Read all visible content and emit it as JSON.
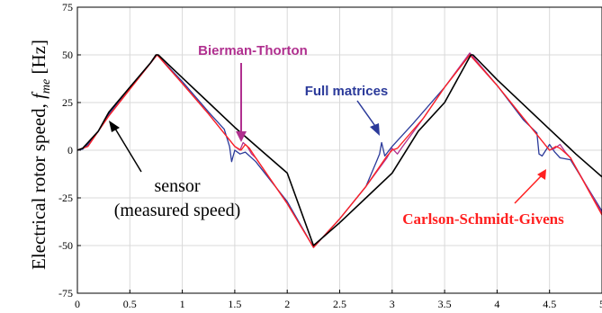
{
  "chart_data": {
    "type": "line",
    "title": "",
    "ylabel_main": "Electrical rotor speed, ",
    "ylabel_symbol": "f",
    "ylabel_subscript": "me",
    "ylabel_unit": " [Hz]",
    "xlabel": "",
    "xlim": [
      0,
      5
    ],
    "ylim": [
      -75,
      75
    ],
    "xticks": [
      0,
      0.5,
      1,
      1.5,
      2,
      2.5,
      3,
      3.5,
      4,
      4.5,
      5
    ],
    "xtick_labels": [
      "0",
      "0.5",
      "1",
      "1.5",
      "2",
      "2.5",
      "3",
      "3.5",
      "4",
      "4.5",
      "5"
    ],
    "yticks": [
      -75,
      -50,
      -25,
      0,
      25,
      50,
      75
    ],
    "ytick_labels": [
      "-75",
      "-50",
      "-25",
      "0",
      "25",
      "50",
      "75"
    ],
    "grid": true,
    "series": [
      {
        "name": "sensor (measured speed)",
        "color": "#000000",
        "x": [
          0,
          0.05,
          0.1,
          0.2,
          0.3,
          0.5,
          0.7,
          0.75,
          0.77,
          1.0,
          1.25,
          1.5,
          1.75,
          2.0,
          2.25,
          2.5,
          2.75,
          3.0,
          3.25,
          3.5,
          3.75,
          3.77,
          4.0,
          4.25,
          4.5,
          4.75,
          5.0
        ],
        "y": [
          0,
          1,
          4,
          10,
          20,
          33,
          46,
          50,
          50,
          38,
          25,
          12,
          0,
          -12,
          -50,
          -38,
          -25,
          -12,
          10,
          25,
          50,
          50,
          37,
          24,
          11,
          -2,
          -14
        ]
      },
      {
        "name": "Full matrices",
        "color": "#2b3a9a",
        "x": [
          0,
          0.05,
          0.1,
          0.2,
          0.3,
          0.5,
          0.7,
          0.76,
          1.0,
          1.25,
          1.4,
          1.45,
          1.47,
          1.5,
          1.55,
          1.6,
          1.7,
          2.0,
          2.25,
          2.5,
          2.75,
          2.85,
          2.88,
          2.9,
          2.93,
          3.0,
          3.05,
          3.2,
          3.5,
          3.74,
          4.0,
          4.25,
          4.38,
          4.4,
          4.43,
          4.5,
          4.55,
          4.6,
          4.7,
          5.0
        ],
        "y": [
          0,
          0.5,
          3,
          10,
          19,
          33,
          46,
          50,
          36,
          20,
          11,
          2,
          -6,
          0,
          -2,
          -1,
          -6,
          -27,
          -51,
          -36,
          -19,
          -6,
          -2,
          4,
          -3,
          2,
          5,
          14,
          33,
          50,
          34,
          16,
          9,
          -2,
          -3,
          3,
          -1,
          -4,
          -5,
          -32
        ]
      },
      {
        "name": "Bierman-Thorton",
        "color": "#b0308f",
        "x": [
          0,
          0.1,
          0.3,
          0.5,
          0.76,
          1.0,
          1.25,
          1.5,
          1.55,
          1.58,
          1.62,
          1.66,
          1.7,
          2.0,
          2.25,
          2.5,
          2.75,
          2.95,
          3.0,
          3.05,
          3.1,
          3.3,
          3.5,
          3.74,
          4.0,
          4.25,
          4.5,
          4.55,
          4.6,
          4.65,
          4.7,
          5.0
        ],
        "y": [
          0,
          2,
          18,
          32,
          50,
          35,
          19,
          2,
          0,
          4,
          2,
          -2,
          -4,
          -28,
          -51,
          -36,
          -19,
          -4,
          1,
          -2,
          2,
          17,
          33,
          51,
          34,
          17,
          0,
          1,
          3,
          -1,
          -4,
          -33
        ]
      },
      {
        "name": "Carlson-Schmidt-Givens",
        "color": "#ff2020",
        "x": [
          0,
          0.1,
          0.3,
          0.5,
          0.76,
          1.0,
          1.25,
          1.5,
          1.56,
          1.6,
          1.64,
          1.7,
          2.0,
          2.25,
          2.5,
          2.75,
          2.95,
          3.0,
          3.05,
          3.3,
          3.5,
          3.74,
          4.0,
          4.25,
          4.5,
          4.56,
          4.6,
          4.66,
          4.7,
          5.0
        ],
        "y": [
          0,
          2,
          18,
          32,
          50,
          35,
          19,
          2,
          0,
          3,
          1,
          -4,
          -28,
          -51,
          -36,
          -19,
          -3,
          0,
          1,
          17,
          33,
          50,
          34,
          17,
          0,
          2,
          1,
          -2,
          -4,
          -34
        ]
      }
    ],
    "annotations": [
      {
        "text": "Bierman-Thorton",
        "color": "#b0308f"
      },
      {
        "text": "Full matrices",
        "color": "#2b3a9a"
      },
      {
        "text": "sensor",
        "color": "#000000"
      },
      {
        "text": "(measured speed)",
        "color": "#000000"
      },
      {
        "text": "Carlson-Schmidt-Givens",
        "color": "#ff2020"
      }
    ]
  }
}
